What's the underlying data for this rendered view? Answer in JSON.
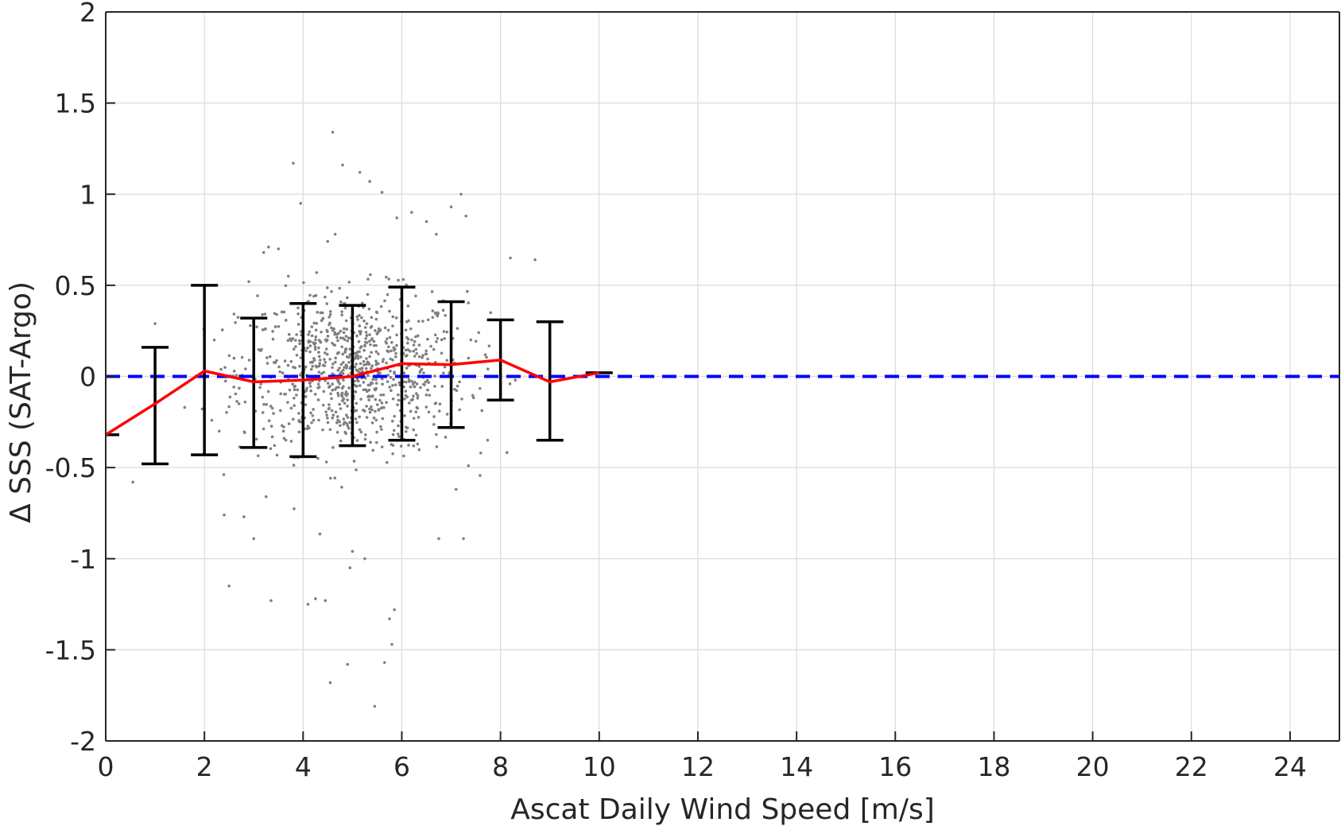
{
  "chart_data": {
    "type": "scatter",
    "title": "",
    "xlabel": "Ascat Daily Wind Speed [m/s]",
    "ylabel": "Δ SSS (SAT-Argo)",
    "xlim": [
      0,
      25
    ],
    "ylim": [
      -2,
      2
    ],
    "grid": true,
    "xticks": [
      0,
      2,
      4,
      6,
      8,
      10,
      12,
      14,
      16,
      18,
      20,
      22,
      24
    ],
    "xtick_labels": [
      "0",
      "2",
      "4",
      "6",
      "8",
      "10",
      "12",
      "14",
      "16",
      "18",
      "20",
      "22",
      "24"
    ],
    "yticks": [
      -2,
      -1.5,
      -1,
      -0.5,
      0,
      0.5,
      1,
      1.5,
      2
    ],
    "ytick_labels": [
      "-2",
      "-1.5",
      "-1",
      "-0.5",
      "0",
      "0.5",
      "1",
      "1.5",
      "2"
    ],
    "series": [
      {
        "kind": "mean_line",
        "color": "#ff0000",
        "x": [
          0,
          1,
          2,
          3,
          4,
          5,
          6,
          7,
          8,
          9,
          10
        ],
        "y": [
          -0.32,
          -0.15,
          0.03,
          -0.03,
          -0.02,
          0.0,
          0.07,
          0.065,
          0.09,
          -0.03,
          0.02
        ]
      },
      {
        "kind": "error_bars",
        "color": "#000000",
        "x": [
          0,
          1,
          2,
          3,
          4,
          5,
          6,
          7,
          8,
          9,
          10
        ],
        "lower": [
          -0.32,
          -0.48,
          -0.43,
          -0.39,
          -0.44,
          -0.38,
          -0.35,
          -0.28,
          -0.13,
          -0.35,
          0.02
        ],
        "upper": [
          -0.32,
          0.16,
          0.5,
          0.32,
          0.4,
          0.39,
          0.49,
          0.41,
          0.31,
          0.3,
          0.02
        ]
      },
      {
        "kind": "zero_line",
        "color": "#0000ff",
        "style": "dashed",
        "y": 0
      },
      {
        "kind": "scatter",
        "color": "#808080",
        "points": [
          [
            0.55,
            -0.58
          ],
          [
            1.0,
            0.29
          ],
          [
            1.6,
            -0.17
          ],
          [
            2.4,
            -0.76
          ],
          [
            2.5,
            -1.15
          ],
          [
            2.8,
            -0.77
          ],
          [
            2.9,
            0.52
          ],
          [
            3.0,
            -0.89
          ],
          [
            3.25,
            -0.66
          ],
          [
            3.35,
            -1.23
          ],
          [
            3.2,
            0.68
          ],
          [
            3.3,
            0.71
          ],
          [
            3.5,
            0.7
          ],
          [
            3.7,
            0.55
          ],
          [
            3.8,
            1.17
          ],
          [
            3.95,
            0.95
          ],
          [
            4.1,
            -1.25
          ],
          [
            4.25,
            -1.22
          ],
          [
            4.45,
            -1.23
          ],
          [
            4.6,
            1.34
          ],
          [
            4.55,
            -1.68
          ],
          [
            4.65,
            0.78
          ],
          [
            4.8,
            1.16
          ],
          [
            4.9,
            -1.58
          ],
          [
            4.95,
            -1.05
          ],
          [
            5.0,
            -0.96
          ],
          [
            5.15,
            1.12
          ],
          [
            5.25,
            -1.0
          ],
          [
            5.35,
            1.07
          ],
          [
            5.45,
            -1.81
          ],
          [
            5.6,
            1.01
          ],
          [
            5.65,
            -1.57
          ],
          [
            5.75,
            -1.33
          ],
          [
            5.8,
            -1.47
          ],
          [
            5.85,
            -1.28
          ],
          [
            5.9,
            0.87
          ],
          [
            6.2,
            0.9
          ],
          [
            6.5,
            0.85
          ],
          [
            6.7,
            0.78
          ],
          [
            6.75,
            -0.89
          ],
          [
            7.0,
            0.93
          ],
          [
            7.1,
            -0.62
          ],
          [
            7.2,
            1.0
          ],
          [
            7.25,
            -0.89
          ],
          [
            7.3,
            0.88
          ],
          [
            7.35,
            -0.49
          ],
          [
            7.6,
            -0.42
          ],
          [
            7.8,
            0.35
          ],
          [
            8.2,
            0.65
          ],
          [
            8.7,
            0.64
          ],
          [
            8.3,
            -0.02
          ],
          [
            2.2,
            0.2
          ],
          [
            2.3,
            -0.3
          ],
          [
            2.6,
            0.1
          ],
          [
            2.7,
            -0.15
          ]
        ],
        "cluster_note": "dense cloud of several hundred points between x≈2.5–7.5, y≈-0.6–0.6"
      }
    ]
  }
}
